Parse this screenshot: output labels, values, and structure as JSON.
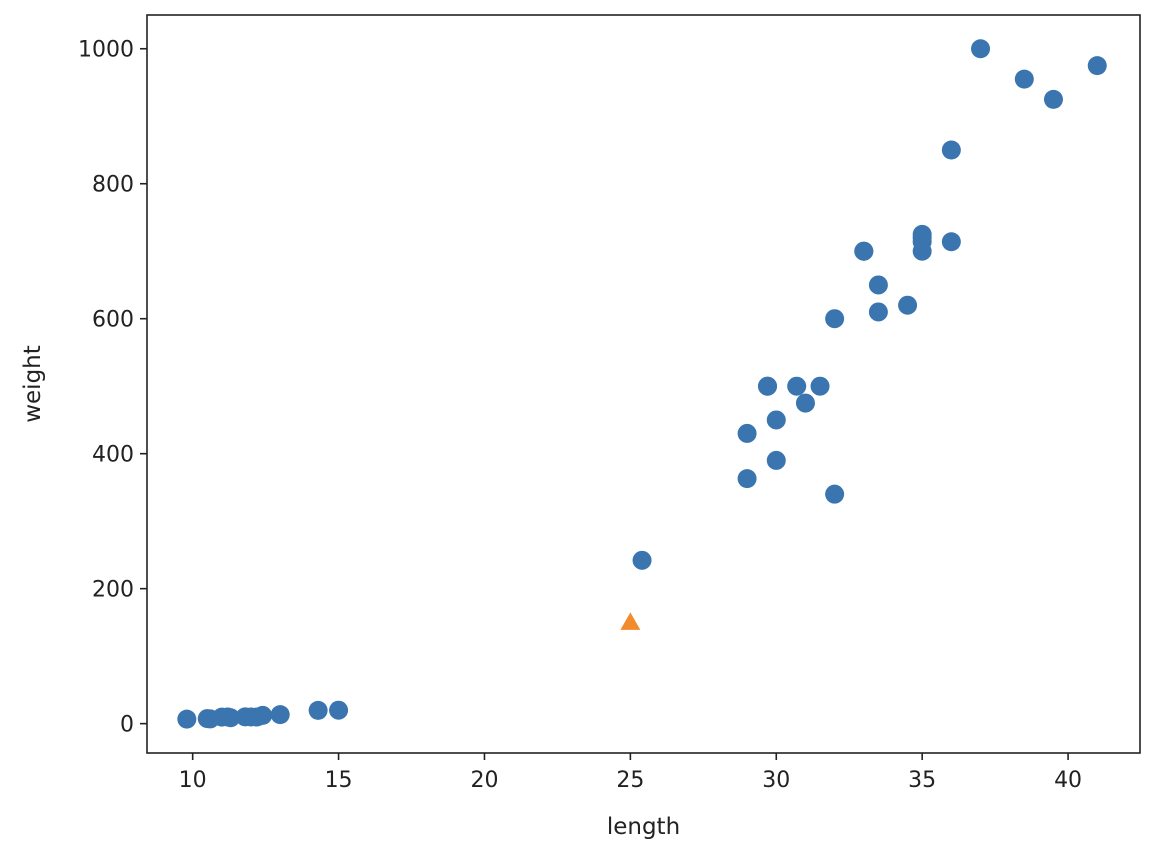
{
  "chart_data": {
    "type": "scatter",
    "title": "",
    "xlabel": "length",
    "ylabel": "weight",
    "xlim": [
      8.435,
      42.465
    ],
    "ylim": [
      -43.5,
      1050
    ],
    "xticks": [
      10,
      15,
      20,
      25,
      30,
      35,
      40
    ],
    "yticks": [
      0,
      200,
      400,
      600,
      800,
      1000
    ],
    "grid": false,
    "series": [
      {
        "marker": "circle",
        "color": "#3b75af",
        "x": [
          25.4,
          29.0,
          29.0,
          29.7,
          29.7,
          30.0,
          30.0,
          30.7,
          31.0,
          31.5,
          32.0,
          32.0,
          33.0,
          33.0,
          33.5,
          33.5,
          34.5,
          35.0,
          35.0,
          35.0,
          35.0,
          36.0,
          36.0,
          37.0,
          38.5,
          39.5,
          41.0,
          9.8,
          10.5,
          10.6,
          11.0,
          11.2,
          11.3,
          11.8,
          12.0,
          12.2,
          12.4,
          13.0,
          14.3,
          15.0
        ],
        "y": [
          242.0,
          363.0,
          430.0,
          500.0,
          500.0,
          390.0,
          450.0,
          500.0,
          475.0,
          500.0,
          340.0,
          600.0,
          700.0,
          700.0,
          610.0,
          650.0,
          620.0,
          700.0,
          725.0,
          720.0,
          714.0,
          850.0,
          714.0,
          1000.0,
          955.0,
          925.0,
          975.0,
          6.7,
          7.5,
          7.0,
          9.7,
          9.8,
          8.7,
          10.0,
          9.9,
          9.8,
          12.2,
          13.4,
          19.7,
          19.9
        ]
      },
      {
        "marker": "triangle",
        "color": "#f28b2d",
        "x": [
          25
        ],
        "y": [
          150
        ]
      }
    ]
  }
}
